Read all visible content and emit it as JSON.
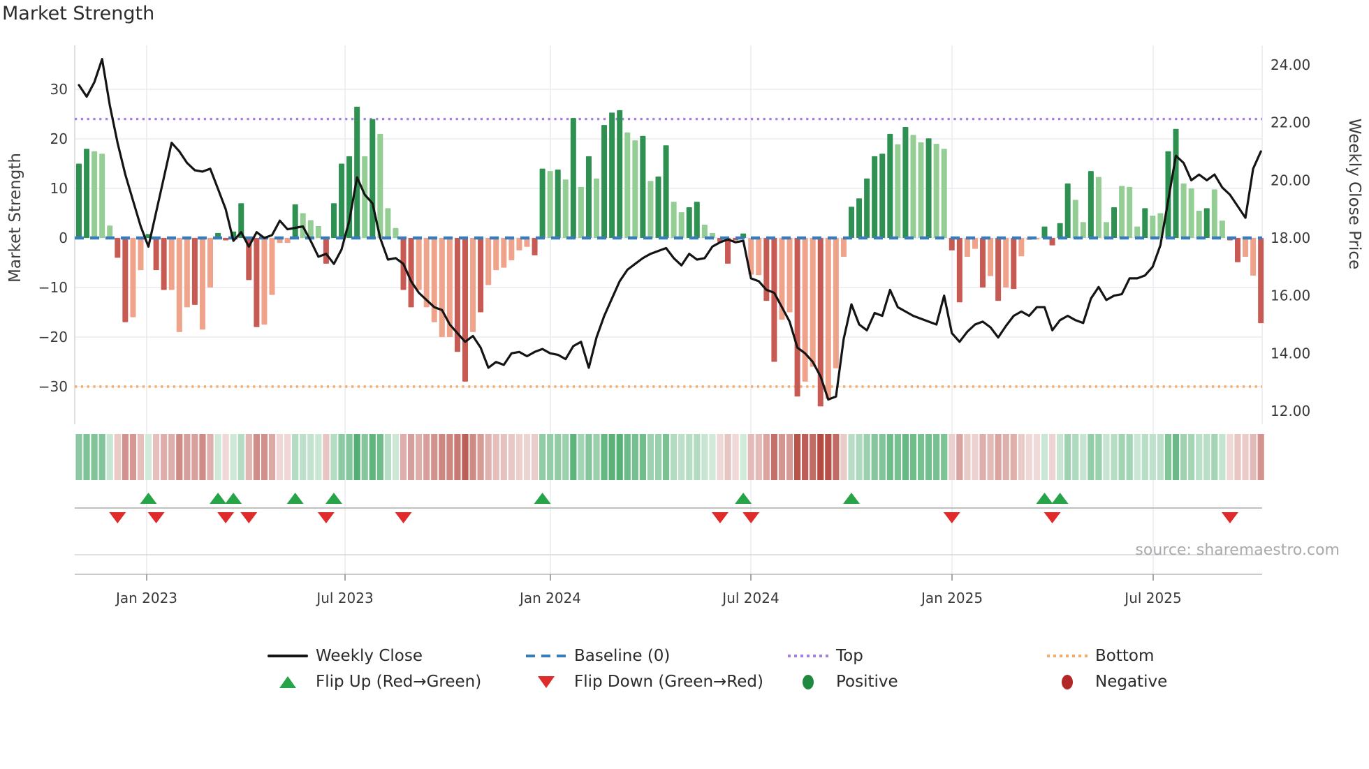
{
  "title": "Market Strength",
  "source_note": "source: sharemaestro.com",
  "colors": {
    "pos_dark": "#2e9152",
    "pos_light": "#94ce94",
    "neg_dark": "#c75b53",
    "neg_light": "#efa38b",
    "price_line": "#141414",
    "baseline": "#3a7cba",
    "top_line": "#a87ee0",
    "bottom_line": "#f5ab69",
    "flip_up": "#27a348",
    "flip_down": "#e02b2b",
    "positive_dot": "#1f8a3d",
    "negative_dot": "#b22727",
    "heat_pos": "#2f9e57",
    "heat_neg": "#b44a42",
    "grid": "#e9ebf1",
    "axis_line": "#c9c9c9",
    "spine": "#d3d6dc",
    "tick_text": "#3a3a3a",
    "muted_text": "#a9aaad"
  },
  "legend": {
    "items": [
      {
        "label": "Weekly Close"
      },
      {
        "label": "Baseline (0)"
      },
      {
        "label": "Top"
      },
      {
        "label": "Bottom"
      },
      {
        "label": "Flip Up (Red→Green)"
      },
      {
        "label": "Flip Down (Green→Red)"
      },
      {
        "label": "Positive"
      },
      {
        "label": "Negative"
      }
    ]
  },
  "chart_data": {
    "type": "bar",
    "title": "Market Strength",
    "xlabel": "",
    "ylabel": "Market Strength",
    "ylabel_right": "Weekly Close Price",
    "x_axis": {
      "tick_labels": [
        "Jan 2023",
        "Jul 2023",
        "Jan 2024",
        "Jul 2024",
        "Jan 2025",
        "Jul 2025"
      ],
      "tick_week_index": [
        8.77,
        34.45,
        61.03,
        86.98,
        113.02,
        139.06
      ],
      "n_weeks": 154
    },
    "left_axis": {
      "label": "Market Strength",
      "tick_labels": [
        "30",
        "20",
        "10",
        "0",
        "−10",
        "−20",
        "−30"
      ],
      "tick_values": [
        30,
        20,
        10,
        0,
        -10,
        -20,
        -30
      ],
      "range": [
        -38.8,
        38.8
      ]
    },
    "right_axis": {
      "label": "Weekly Close Price",
      "tick_labels": [
        "24.00",
        "22.00",
        "20.00",
        "18.00",
        "16.00",
        "14.00",
        "12.00"
      ],
      "tick_values": [
        24,
        22,
        20,
        18,
        16,
        14,
        12
      ],
      "range": [
        11.3,
        24.7
      ]
    },
    "reference_lines": {
      "baseline": {
        "label": "Baseline (0)",
        "value": 0
      },
      "top": {
        "label": "Top",
        "value": 24
      },
      "bottom": {
        "label": "Bottom",
        "value": -30
      }
    },
    "series": [
      {
        "name": "Market Strength",
        "type": "bar",
        "values": [
          15,
          18,
          17.5,
          17,
          2.5,
          -4,
          -17,
          -16,
          -6.5,
          0.8,
          -6.5,
          -10.5,
          -10.5,
          -19,
          -14,
          -13.5,
          -18.5,
          -10,
          1,
          -0.5,
          1.3,
          7,
          -8.5,
          -18,
          -17.5,
          -11.5,
          -1,
          -1,
          6.8,
          5,
          3.6,
          2.4,
          -5.2,
          7,
          15,
          16.5,
          26.5,
          16.5,
          24,
          21,
          6,
          2,
          -10.5,
          -14,
          -10.5,
          -14,
          -17,
          -20,
          -20,
          -23,
          -29,
          -19,
          -15,
          -9.5,
          -6.5,
          -6,
          -4.5,
          -2.5,
          -1.8,
          -3.5,
          14,
          13.5,
          13.8,
          11.8,
          24.2,
          10.3,
          16.5,
          12,
          22.8,
          25.3,
          25.8,
          21.3,
          19.7,
          20.6,
          11.5,
          12.4,
          18.7,
          7.3,
          5.2,
          6.2,
          7.3,
          2.7,
          1,
          -0.8,
          -5.2,
          -0.5,
          0.9,
          -7.4,
          -7.5,
          -12.7,
          -25,
          -16.5,
          -15,
          -32,
          -29,
          -26,
          -34,
          -32.5,
          -26.3,
          -3.8,
          6.3,
          8,
          12,
          16.5,
          17,
          21,
          18.9,
          22.4,
          20.8,
          19.3,
          20.1,
          19,
          18,
          -2.5,
          -13,
          -3.8,
          -2.2,
          -10,
          -7.7,
          -12.7,
          -10,
          -10.3,
          -3.7,
          -0.4,
          -0.3,
          2.3,
          -1.5,
          3,
          11,
          7.7,
          3.2,
          13.5,
          12.3,
          3.2,
          6.2,
          10.5,
          10.3,
          2.3,
          6,
          4.5,
          5,
          17.5,
          22,
          11,
          10,
          5.5,
          6,
          9.8,
          3.5,
          -0.5,
          -4.9,
          -3.8,
          -7.6,
          -17.2
        ],
        "shades": [
          "d",
          "d",
          "l",
          "l",
          "l",
          "d",
          "d",
          "l",
          "l",
          "d",
          "d",
          "d",
          "l",
          "l",
          "l",
          "d",
          "l",
          "l",
          "d",
          "d",
          "d",
          "d",
          "d",
          "d",
          "l",
          "l",
          "l",
          "l",
          "d",
          "l",
          "l",
          "l",
          "d",
          "d",
          "d",
          "d",
          "d",
          "l",
          "d",
          "l",
          "l",
          "l",
          "d",
          "d",
          "l",
          "l",
          "l",
          "l",
          "l",
          "d",
          "d",
          "l",
          "d",
          "l",
          "l",
          "l",
          "l",
          "l",
          "l",
          "d",
          "d",
          "l",
          "d",
          "l",
          "d",
          "l",
          "d",
          "l",
          "d",
          "d",
          "d",
          "l",
          "l",
          "d",
          "l",
          "d",
          "d",
          "l",
          "l",
          "d",
          "d",
          "l",
          "l",
          "d",
          "d",
          "d",
          "d",
          "l",
          "l",
          "d",
          "d",
          "l",
          "l",
          "d",
          "l",
          "l",
          "d",
          "l",
          "l",
          "l",
          "d",
          "d",
          "d",
          "d",
          "d",
          "d",
          "l",
          "d",
          "l",
          "l",
          "d",
          "l",
          "l",
          "d",
          "d",
          "l",
          "l",
          "d",
          "l",
          "d",
          "l",
          "d",
          "l",
          "l",
          "l",
          "d",
          "d",
          "d",
          "d",
          "l",
          "l",
          "d",
          "l",
          "l",
          "d",
          "l",
          "l",
          "l",
          "d",
          "l",
          "l",
          "d",
          "d",
          "l",
          "l",
          "l",
          "d",
          "l",
          "l",
          "d",
          "d",
          "l",
          "l",
          "d"
        ]
      },
      {
        "name": "Weekly Close",
        "type": "line",
        "values": [
          23.3,
          22.9,
          23.4,
          24.2,
          22.6,
          21.3,
          20.2,
          19.3,
          18.4,
          17.7,
          18.9,
          20.1,
          21.3,
          21.0,
          20.6,
          20.35,
          20.3,
          20.4,
          19.7,
          19.0,
          17.9,
          18.2,
          17.7,
          18.2,
          18.0,
          18.1,
          18.6,
          18.3,
          18.35,
          18.4,
          17.9,
          17.35,
          17.45,
          17.1,
          17.6,
          18.6,
          20.1,
          19.5,
          19.2,
          18.0,
          17.25,
          17.3,
          17.1,
          16.5,
          16.1,
          15.85,
          15.6,
          15.5,
          15.0,
          14.7,
          14.4,
          14.6,
          14.2,
          13.5,
          13.7,
          13.6,
          14.0,
          14.05,
          13.9,
          14.05,
          14.15,
          14.0,
          13.95,
          13.8,
          14.25,
          14.4,
          13.5,
          14.55,
          15.3,
          15.9,
          16.5,
          16.9,
          17.1,
          17.3,
          17.45,
          17.55,
          17.65,
          17.3,
          17.05,
          17.45,
          17.25,
          17.3,
          17.7,
          17.85,
          17.95,
          17.85,
          17.9,
          16.6,
          16.5,
          16.2,
          16.1,
          15.6,
          15.1,
          14.2,
          14.0,
          13.7,
          13.2,
          12.4,
          12.5,
          14.5,
          15.7,
          15.0,
          14.8,
          15.4,
          15.3,
          16.2,
          15.6,
          15.45,
          15.3,
          15.2,
          15.1,
          15.0,
          16.0,
          14.7,
          14.4,
          14.75,
          15.0,
          15.1,
          14.9,
          14.55,
          14.95,
          15.3,
          15.45,
          15.3,
          15.6,
          15.6,
          14.8,
          15.15,
          15.3,
          15.15,
          15.05,
          15.9,
          16.3,
          15.85,
          16.0,
          16.05,
          16.6,
          16.6,
          16.7,
          17.0,
          17.75,
          19.3,
          20.85,
          20.6,
          20.0,
          20.2,
          20.0,
          20.2,
          19.75,
          19.5,
          19.1,
          18.7,
          20.4,
          21.0
        ]
      }
    ],
    "heatmap": {
      "note": "weekly strip below main plot, color intensity mirrors Market Strength bar values",
      "values_same_as_strength": true
    },
    "flip_up_weeks": [
      9,
      18,
      20,
      28,
      33,
      60,
      86,
      100,
      125,
      127
    ],
    "flip_down_weeks": [
      5,
      10,
      19,
      22,
      32,
      42,
      83,
      87,
      113,
      126,
      149
    ],
    "grid": true,
    "legend_position": "bottom"
  }
}
